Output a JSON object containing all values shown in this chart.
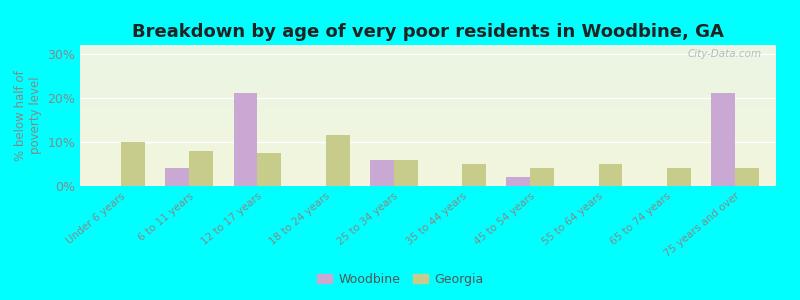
{
  "title": "Breakdown by age of very poor residents in Woodbine, GA",
  "ylabel": "% below half of\npoverty level",
  "categories": [
    "Under 6 years",
    "6 to 11 years",
    "12 to 17 years",
    "18 to 24 years",
    "25 to 34 years",
    "35 to 44 years",
    "45 to 54 years",
    "55 to 64 years",
    "65 to 74 years",
    "75 years and over"
  ],
  "woodbine": [
    0,
    4,
    21,
    0,
    6,
    0,
    2,
    0,
    0,
    21
  ],
  "georgia": [
    10,
    8,
    7.5,
    11.5,
    6,
    5,
    4,
    5,
    4,
    4
  ],
  "woodbine_color": "#c9a8d4",
  "georgia_color": "#c8cc8a",
  "background_top": "#eaf5e4",
  "background_bottom": "#f2f5dc",
  "outer_background": "#00ffff",
  "ylim": [
    0,
    32
  ],
  "yticks": [
    0,
    10,
    20,
    30
  ],
  "ytick_labels": [
    "0%",
    "10%",
    "20%",
    "30%"
  ],
  "bar_width": 0.35,
  "watermark": "City-Data.com",
  "legend_woodbine": "Woodbine",
  "legend_georgia": "Georgia",
  "title_fontsize": 13,
  "label_fontsize": 9,
  "tick_color": "#888888"
}
